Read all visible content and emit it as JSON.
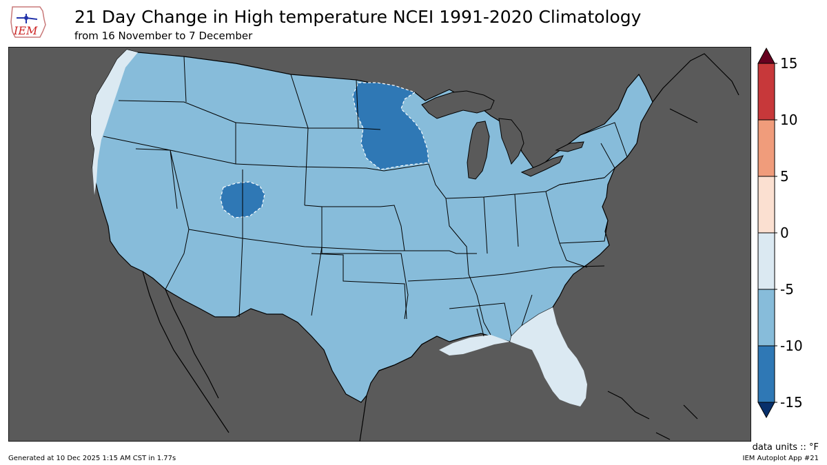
{
  "header": {
    "logo_text": "IEM",
    "title": "21 Day Change in High temperature NCEI 1991-2020 Climatology",
    "subtitle": "from 16 November to 7 December"
  },
  "colors": {
    "background_land": "#5a5a5a",
    "below_min": "#08306b",
    "bin_m15_m10": "#2f78b5",
    "bin_m10_m5": "#87bcda",
    "bin_m5_0": "#dbe9f2",
    "bin_0_5": "#fbe0d1",
    "bin_5_10": "#f09c7b",
    "bin_10_15": "#c7383a",
    "above_max": "#67001f"
  },
  "colorbar": {
    "ticks": [
      "15",
      "10",
      "5",
      "0",
      "-5",
      "-10",
      "-15"
    ]
  },
  "legend": {
    "units": "data units :: °F"
  },
  "footer": {
    "generated": "Generated at 10 Dec 2025 1:15 AM CST in 1.77s",
    "app": "IEM Autoplot App #21"
  }
}
